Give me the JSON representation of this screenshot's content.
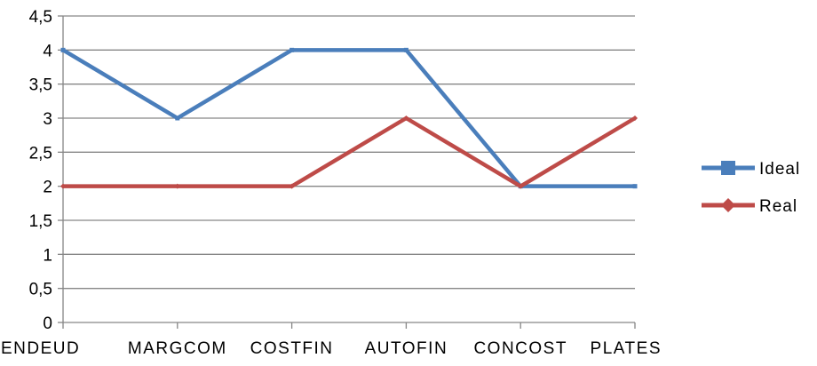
{
  "chart_data": {
    "type": "line",
    "title": "",
    "xlabel": "",
    "ylabel": "",
    "categories": [
      "ENDEUD",
      "MARGCOM",
      "COSTFIN",
      "AUTOFIN",
      "CONCOST",
      "PLATES"
    ],
    "ylim": [
      0,
      4.5
    ],
    "y_ticks": [
      "0",
      "0,5",
      "1",
      "1,5",
      "2",
      "2,5",
      "3",
      "3,5",
      "4",
      "4,5"
    ],
    "grid": true,
    "legend_position": "right",
    "series": [
      {
        "name": "Ideal",
        "values": [
          4,
          3,
          4,
          4,
          2,
          2
        ],
        "color": "#4A7EBB",
        "marker": "square"
      },
      {
        "name": "Real",
        "values": [
          2,
          2,
          2,
          3,
          2,
          3
        ],
        "color": "#BE4B48",
        "marker": "diamond"
      }
    ]
  }
}
